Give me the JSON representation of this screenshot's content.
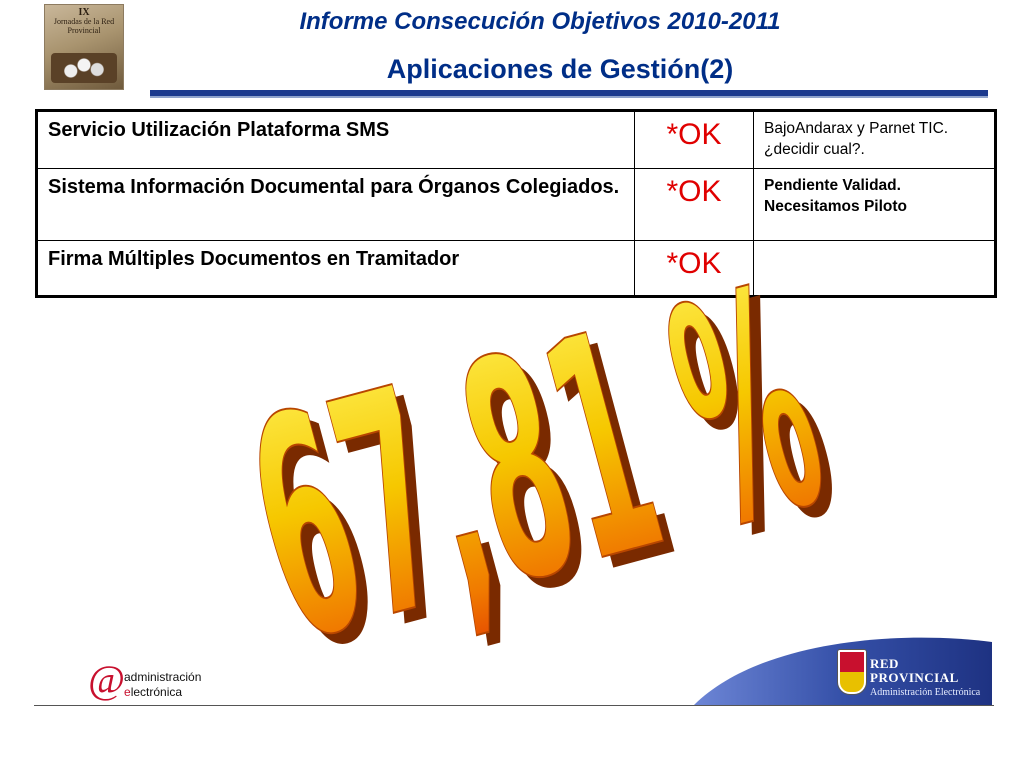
{
  "header": {
    "title": "Informe Consecución Objetivos 2010-2011",
    "subtitle": "Aplicaciones de Gestión(2)",
    "logo_roman": "IX",
    "logo_caption": "Jornadas de la Red Provincial"
  },
  "table": {
    "rows": [
      {
        "service": "Servicio Utilización Plataforma SMS",
        "status": "*OK",
        "note": "BajoAndarax y Parnet TIC. ¿decidir cual?."
      },
      {
        "service": "Sistema Información Documental para Órganos Colegiados.",
        "status": "*OK",
        "note": "Pendiente Validad. Necesitamos Piloto"
      },
      {
        "service": "Firma Múltiples Documentos en Tramitador",
        "status": "*OK",
        "note": ""
      }
    ]
  },
  "highlight": {
    "value": "67,81 %"
  },
  "footer": {
    "admin_at": "@",
    "admin_line1": "administración",
    "admin_line2_e": "e",
    "admin_line2_rest": "lectrónica",
    "red_line1": "RED",
    "red_line2": "PROVINCIAL",
    "red_line3": "Administración Electrónica"
  },
  "colors": {
    "title": "#002e87",
    "ok": "#e00000",
    "banner": "#2a3f95",
    "art_gold": "#f6d400",
    "art_orange": "#e23a00"
  }
}
